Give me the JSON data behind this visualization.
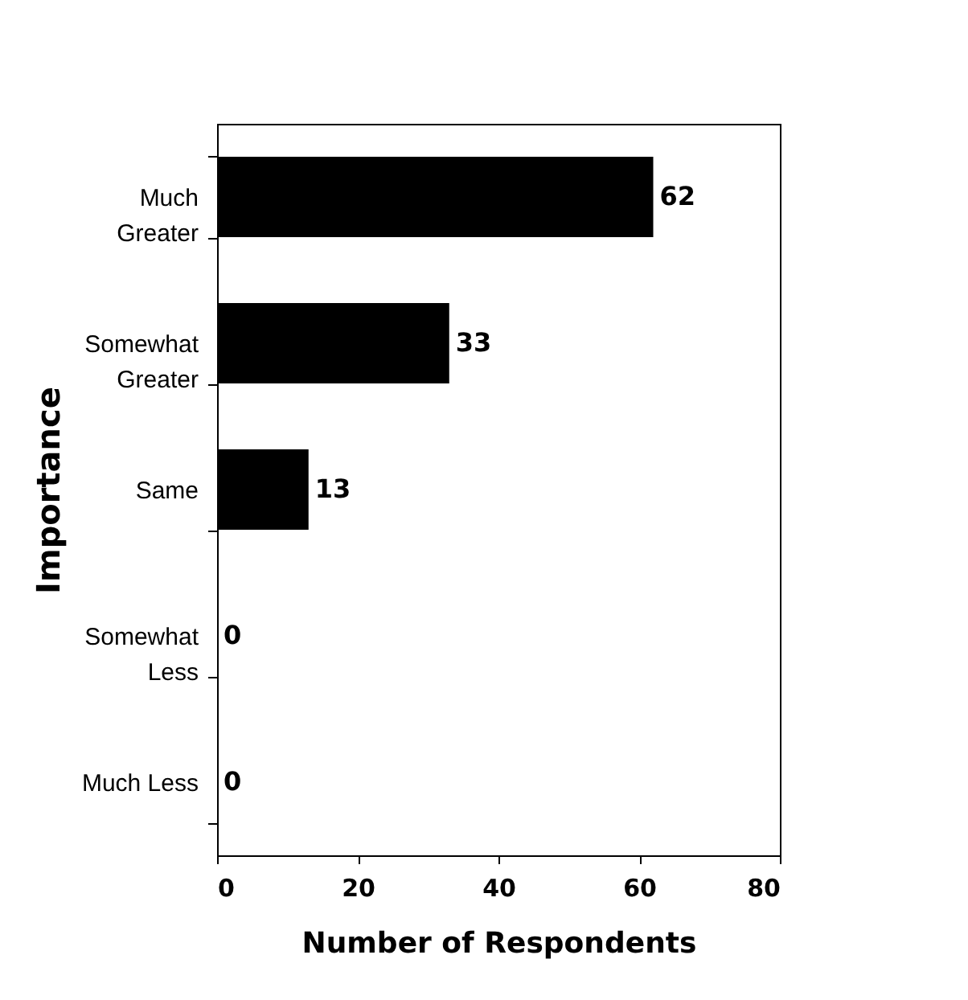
{
  "chart_data": {
    "type": "bar",
    "orientation": "horizontal",
    "xlabel": "Number of Respondents",
    "ylabel": "Importance",
    "categories": [
      "Much Greater",
      "Somewhat Greater",
      "Same",
      "Somewhat Less",
      "Much Less"
    ],
    "values": [
      62,
      33,
      13,
      0,
      0
    ],
    "color": "#000000",
    "data_labels": true,
    "grid": false,
    "xlim": [
      0,
      80
    ],
    "xticks": [
      0,
      20,
      40,
      60,
      80
    ]
  }
}
